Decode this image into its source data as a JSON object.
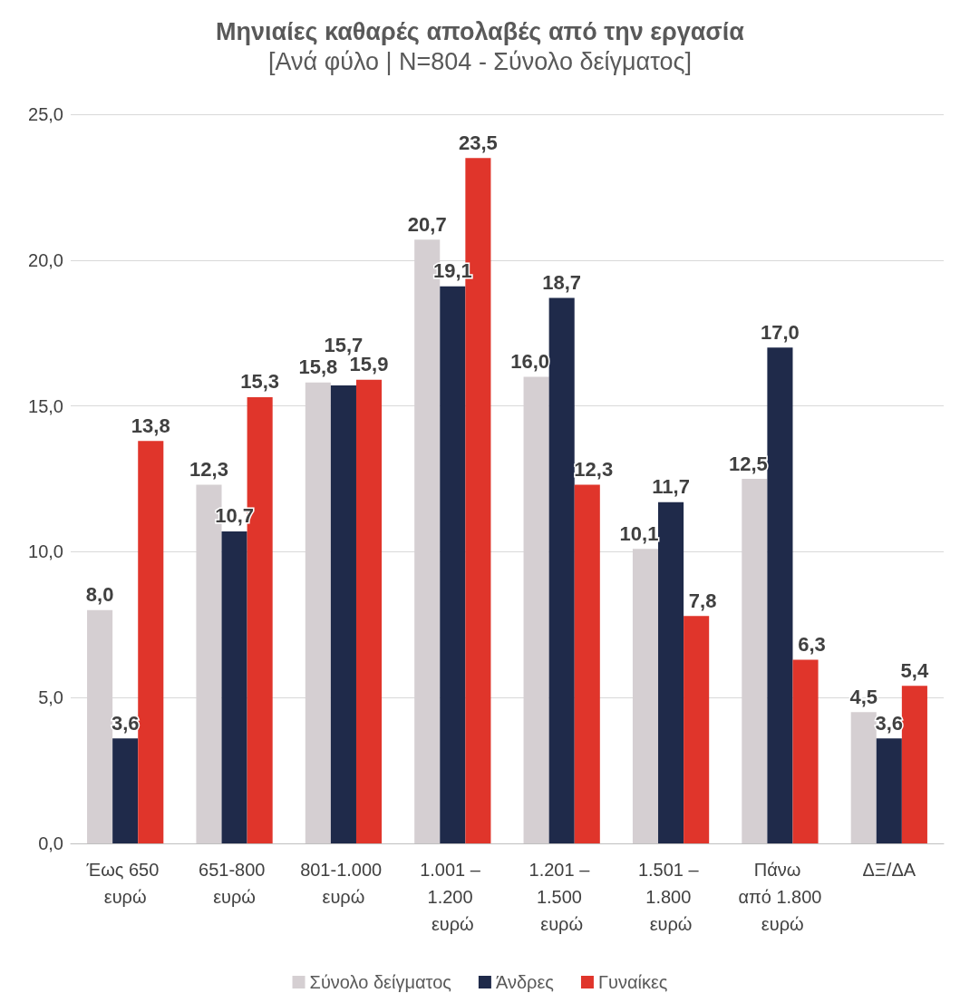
{
  "chart_data": {
    "type": "bar",
    "title": "Μηνιαίες καθαρές απολαβές από την εργασία",
    "subtitle": "[Ανά φύλο | N=804 - Σύνολο δείγματος]",
    "categories": [
      "Έως 650 ευρώ",
      "651-800 ευρώ",
      "801-1.000 ευρώ",
      "1.001 – 1.200 ευρώ",
      "1.201 – 1.500 ευρώ",
      "1.501 – 1.800 ευρώ",
      "Πάνω από 1.800 ευρώ",
      "ΔΞ/ΔΑ"
    ],
    "series": [
      {
        "name": "Σύνολο δείγματος",
        "color": "#d5cfd2",
        "values": [
          8.0,
          12.3,
          15.8,
          20.7,
          16.0,
          10.1,
          12.5,
          4.5
        ],
        "value_labels": [
          "8,0",
          "12,3",
          "15,8",
          "20,7",
          "16,0",
          "10,1",
          "12,5",
          "4,5"
        ]
      },
      {
        "name": "Άνδρες",
        "color": "#1f2a4a",
        "values": [
          3.6,
          10.7,
          15.7,
          19.1,
          18.7,
          11.7,
          17.0,
          3.6
        ],
        "value_labels": [
          "3,6",
          "10,7",
          "15,7",
          "19,1",
          "18,7",
          "11,7",
          "17,0",
          "3,6"
        ]
      },
      {
        "name": "Γυναίκες",
        "color": "#e0352b",
        "values": [
          13.8,
          15.3,
          15.9,
          23.5,
          12.3,
          7.8,
          6.3,
          5.4
        ],
        "value_labels": [
          "13,8",
          "15,3",
          "15,9",
          "23,5",
          "12,3",
          "7,8",
          "6,3",
          "5,4"
        ]
      }
    ],
    "ylim": [
      0,
      25
    ],
    "yticks": [
      {
        "value": 0,
        "label": "0,0"
      },
      {
        "value": 5,
        "label": "5,0"
      },
      {
        "value": 10,
        "label": "10,0"
      },
      {
        "value": 15,
        "label": "15,0"
      },
      {
        "value": 20,
        "label": "20,0"
      },
      {
        "value": 25,
        "label": "25,0"
      }
    ],
    "grid": "y",
    "legend": "bottom"
  }
}
